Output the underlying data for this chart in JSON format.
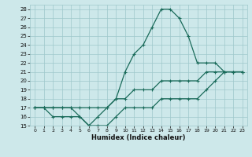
{
  "xlabel": "Humidex (Indice chaleur)",
  "hours": [
    0,
    1,
    2,
    3,
    4,
    5,
    6,
    7,
    8,
    9,
    10,
    11,
    12,
    13,
    14,
    15,
    16,
    17,
    18,
    19,
    20,
    21,
    22,
    23
  ],
  "line_max": [
    17,
    17,
    17,
    17,
    17,
    16,
    15,
    16,
    17,
    18,
    21,
    23,
    24,
    26,
    28,
    28,
    27,
    25,
    22,
    22,
    22,
    21,
    21,
    21
  ],
  "line_mean": [
    17,
    17,
    17,
    17,
    17,
    17,
    17,
    17,
    17,
    18,
    18,
    19,
    19,
    19,
    20,
    20,
    20,
    20,
    20,
    21,
    21,
    21,
    21,
    21
  ],
  "line_min": [
    17,
    17,
    16,
    16,
    16,
    16,
    15,
    15,
    15,
    16,
    17,
    17,
    17,
    17,
    18,
    18,
    18,
    18,
    18,
    19,
    20,
    21,
    21,
    21
  ],
  "bg_color": "#cde8ea",
  "grid_color": "#9fc8cb",
  "line_color": "#1a6b5a",
  "xlim": [
    -0.5,
    23.5
  ],
  "ylim": [
    15,
    28.5
  ],
  "yticks": [
    15,
    16,
    17,
    18,
    19,
    20,
    21,
    22,
    23,
    24,
    25,
    26,
    27,
    28
  ],
  "xticks": [
    0,
    1,
    2,
    3,
    4,
    5,
    6,
    7,
    8,
    9,
    10,
    11,
    12,
    13,
    14,
    15,
    16,
    17,
    18,
    19,
    20,
    21,
    22,
    23
  ]
}
